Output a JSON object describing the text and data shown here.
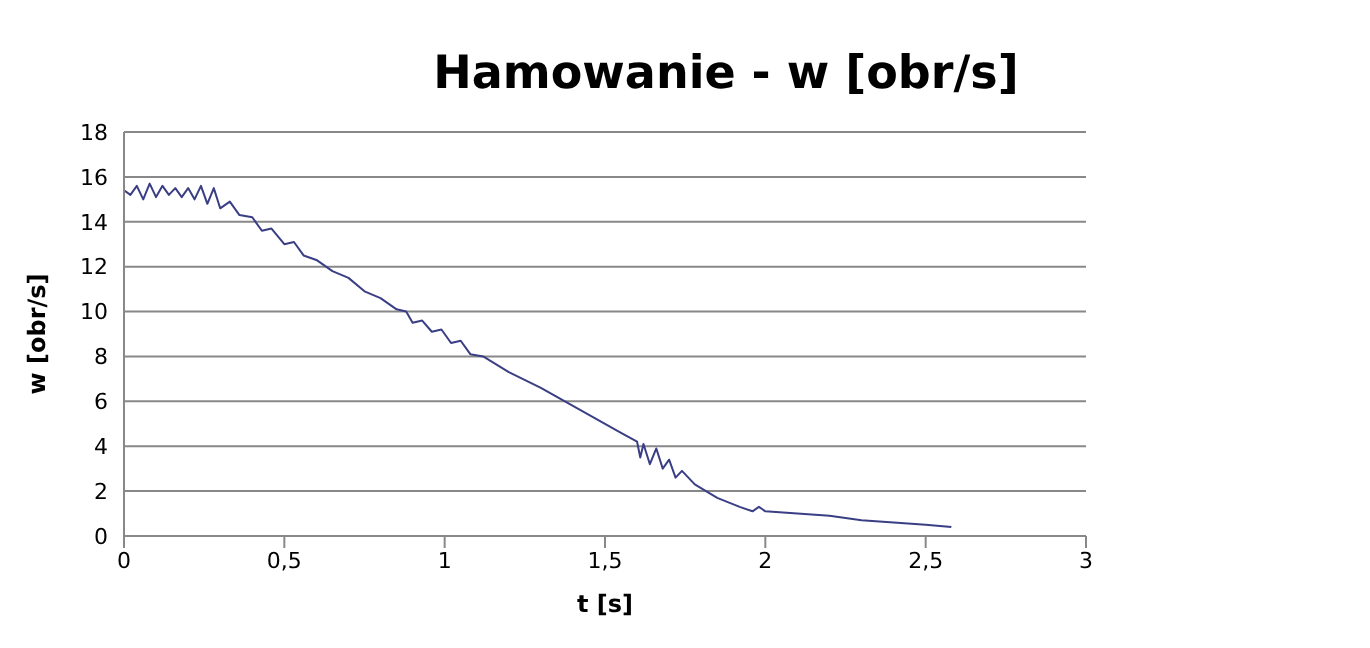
{
  "chart_data": {
    "type": "line",
    "title": "Hamowanie - w [obr/s]",
    "xlabel": "t [s]",
    "ylabel": "w [obr/s]",
    "x": [
      0,
      0.02,
      0.04,
      0.06,
      0.08,
      0.1,
      0.12,
      0.14,
      0.16,
      0.18,
      0.2,
      0.22,
      0.24,
      0.26,
      0.28,
      0.3,
      0.33,
      0.36,
      0.4,
      0.43,
      0.46,
      0.5,
      0.53,
      0.56,
      0.6,
      0.65,
      0.7,
      0.75,
      0.8,
      0.85,
      0.88,
      0.9,
      0.93,
      0.96,
      0.99,
      1.02,
      1.05,
      1.08,
      1.12,
      1.2,
      1.3,
      1.4,
      1.5,
      1.55,
      1.6,
      1.61,
      1.62,
      1.64,
      1.66,
      1.68,
      1.7,
      1.72,
      1.74,
      1.78,
      1.85,
      1.92,
      1.96,
      1.98,
      2,
      2.1,
      2.2,
      2.3,
      2.4,
      2.5,
      2.58
    ],
    "series": [
      {
        "color": "#3a3f85",
        "values": [
          15.4,
          15.2,
          15.6,
          15.0,
          15.7,
          15.1,
          15.6,
          15.2,
          15.5,
          15.1,
          15.5,
          15.0,
          15.6,
          14.8,
          15.5,
          14.6,
          14.9,
          14.3,
          14.2,
          13.6,
          13.7,
          13.0,
          13.1,
          12.5,
          12.3,
          11.8,
          11.5,
          10.9,
          10.6,
          10.1,
          10.0,
          9.5,
          9.6,
          9.1,
          9.2,
          8.6,
          8.7,
          8.1,
          8.0,
          7.3,
          6.6,
          5.8,
          5.0,
          4.6,
          4.2,
          3.5,
          4.1,
          3.2,
          3.9,
          3.0,
          3.4,
          2.6,
          2.9,
          2.3,
          1.7,
          1.3,
          1.1,
          1.3,
          1.1,
          1.0,
          0.9,
          0.7,
          0.6,
          0.5,
          0.4
        ]
      }
    ],
    "xlim": [
      0,
      3
    ],
    "xticks": [
      0,
      {
        "value": 0.5,
        "label": "0,5"
      },
      1,
      {
        "value": 1.5,
        "label": "1,5"
      },
      2,
      {
        "value": 2.5,
        "label": "2,5"
      },
      3
    ],
    "ylim": [
      0,
      18
    ],
    "yticks": [
      0,
      2,
      4,
      6,
      8,
      10,
      12,
      14,
      16,
      18
    ],
    "grid": "y",
    "legend": false,
    "marker": "none",
    "line_style": "solid"
  }
}
